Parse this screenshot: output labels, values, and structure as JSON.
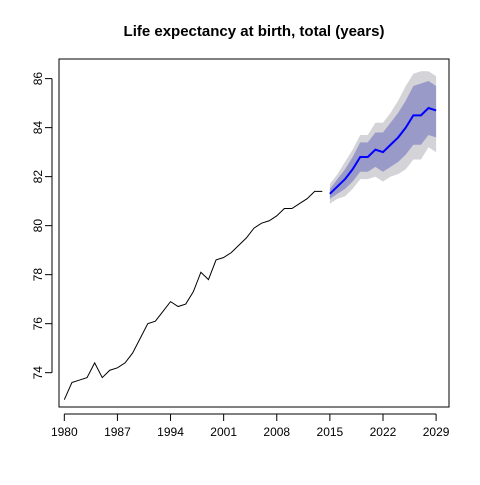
{
  "chart_data": {
    "type": "line",
    "title": "Life expectancy at birth, total (years)",
    "xlabel": "",
    "ylabel": "",
    "xlim": [
      1979.3,
      2030.7
    ],
    "ylim": [
      72.6,
      86.8
    ],
    "xticks": [
      1980,
      1987,
      1994,
      2001,
      2008,
      2015,
      2022,
      2029
    ],
    "yticks": [
      74,
      76,
      78,
      80,
      82,
      84,
      86
    ],
    "grid": false,
    "legend": "none",
    "colors": {
      "history": "#000000",
      "forecast": "#0000ff",
      "band_outer": "#d3d3d8",
      "band_inner": "#9a9ac8"
    },
    "series": [
      {
        "kind": "history",
        "x": [
          1980,
          1981,
          1982,
          1983,
          1984,
          1985,
          1986,
          1987,
          1988,
          1989,
          1990,
          1991,
          1992,
          1993,
          1994,
          1995,
          1996,
          1997,
          1998,
          1999,
          2000,
          2001,
          2002,
          2003,
          2004,
          2005,
          2006,
          2007,
          2008,
          2009,
          2010,
          2011,
          2012,
          2013,
          2014
        ],
        "values": [
          72.9,
          73.6,
          73.7,
          73.8,
          74.4,
          73.8,
          74.1,
          74.2,
          74.4,
          74.8,
          75.4,
          76.0,
          76.1,
          76.5,
          76.9,
          76.7,
          76.8,
          77.3,
          78.1,
          77.8,
          78.6,
          78.7,
          78.9,
          79.2,
          79.5,
          79.9,
          80.1,
          80.2,
          80.4,
          80.7,
          80.7,
          80.9,
          81.1,
          81.4,
          81.4
        ]
      },
      {
        "kind": "forecast",
        "x": [
          2015,
          2016,
          2017,
          2018,
          2019,
          2020,
          2021,
          2022,
          2023,
          2024,
          2025,
          2026,
          2027,
          2028,
          2029
        ],
        "values": [
          81.3,
          81.6,
          81.9,
          82.3,
          82.8,
          82.8,
          83.1,
          83.0,
          83.3,
          83.6,
          84.0,
          84.5,
          84.5,
          84.8,
          84.7
        ],
        "lo80": [
          81.1,
          81.3,
          81.5,
          81.8,
          82.2,
          82.2,
          82.4,
          82.2,
          82.4,
          82.6,
          82.9,
          83.3,
          83.3,
          83.7,
          83.6
        ],
        "hi80": [
          81.5,
          81.9,
          82.3,
          82.8,
          83.4,
          83.4,
          83.8,
          83.8,
          84.2,
          84.6,
          85.1,
          85.7,
          85.8,
          85.9,
          85.7
        ],
        "lo95": [
          80.9,
          81.1,
          81.2,
          81.5,
          81.9,
          81.9,
          82.0,
          81.8,
          82.0,
          82.1,
          82.3,
          82.7,
          82.7,
          83.2,
          83.0
        ],
        "hi95": [
          81.7,
          82.1,
          82.6,
          83.1,
          83.7,
          83.7,
          84.2,
          84.2,
          84.6,
          85.1,
          85.7,
          86.2,
          86.3,
          86.3,
          86.1
        ]
      }
    ]
  }
}
